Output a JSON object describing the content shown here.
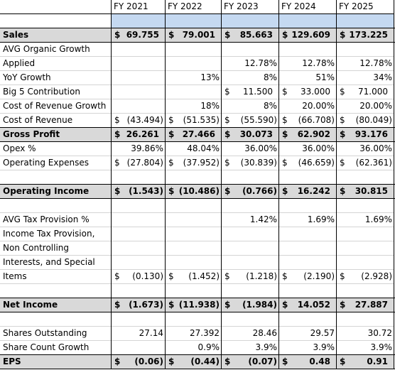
{
  "header": {
    "columns": [
      "FY 2021",
      "FY 2022",
      "FY 2023",
      "FY 2024",
      "FY 2025"
    ]
  },
  "rows": [
    {
      "label": null,
      "highlight": "#c5d9f1",
      "cells": [
        null,
        null,
        null,
        null,
        null
      ]
    },
    {
      "label": "Sales",
      "bold": true,
      "cells": [
        {
          "sign": "$",
          "amount": "69.755"
        },
        {
          "sign": "$",
          "amount": "79.001"
        },
        {
          "sign": "$",
          "amount": "85.663"
        },
        {
          "sign": "$",
          "amount": "129.609"
        },
        {
          "sign": "$",
          "amount": "173.225"
        }
      ]
    },
    {
      "label": "AVG Organic Growth",
      "cells": [
        null,
        null,
        null,
        null,
        null
      ]
    },
    {
      "label": "Applied",
      "cells": [
        null,
        null,
        "12.78%",
        "12.78%",
        "12.78%"
      ]
    },
    {
      "label": "YoY Growth",
      "cells": [
        null,
        "13%",
        "8%",
        "51%",
        "34%"
      ]
    },
    {
      "label": "Big 5 Contribution",
      "cells": [
        null,
        null,
        {
          "sign": "$",
          "amount": "11.500"
        },
        {
          "sign": "$",
          "amount": "33.000"
        },
        {
          "sign": "$",
          "amount": "71.000"
        }
      ]
    },
    {
      "label": "Cost of Revenue Growth",
      "cells": [
        null,
        "18%",
        "8%",
        "20.00%",
        "20.00%"
      ]
    },
    {
      "label": "Cost of Revenue",
      "cells": [
        {
          "sign": "$",
          "amount": "(43.494)"
        },
        {
          "sign": "$",
          "amount": "(51.535)"
        },
        {
          "sign": "$",
          "amount": "(55.590)"
        },
        {
          "sign": "$",
          "amount": "(66.708)"
        },
        {
          "sign": "$",
          "amount": "(80.049)"
        }
      ]
    },
    {
      "label": "Gross Profit",
      "bold": true,
      "cells": [
        {
          "sign": "$",
          "amount": "26.261"
        },
        {
          "sign": "$",
          "amount": "27.466"
        },
        {
          "sign": "$",
          "amount": "30.073"
        },
        {
          "sign": "$",
          "amount": "62.902"
        },
        {
          "sign": "$",
          "amount": "93.176"
        }
      ]
    },
    {
      "label": "Opex %",
      "cells": [
        "39.86%",
        "48.04%",
        "36.00%",
        "36.00%",
        "36.00%"
      ]
    },
    {
      "label": "Operating Expenses",
      "cells": [
        {
          "sign": "$",
          "amount": "(27.804)"
        },
        {
          "sign": "$",
          "amount": "(37.952)"
        },
        {
          "sign": "$",
          "amount": "(30.839)"
        },
        {
          "sign": "$",
          "amount": "(46.659)"
        },
        {
          "sign": "$",
          "amount": "(62.361)"
        }
      ]
    },
    {
      "label": null,
      "cells": [
        null,
        null,
        null,
        null,
        null
      ]
    },
    {
      "label": "Operating Income",
      "bold": true,
      "cells": [
        {
          "sign": "$",
          "amount": "(1.543)"
        },
        {
          "sign": "$",
          "amount": "(10.486)"
        },
        {
          "sign": "$",
          "amount": "(0.766)"
        },
        {
          "sign": "$",
          "amount": "16.242"
        },
        {
          "sign": "$",
          "amount": "30.815"
        }
      ]
    },
    {
      "label": null,
      "cells": [
        null,
        null,
        null,
        null,
        null
      ]
    },
    {
      "label": "AVG Tax Provision %",
      "cells": [
        null,
        null,
        "1.42%",
        "1.69%",
        "1.69%"
      ]
    },
    {
      "label": "Income Tax Provision,",
      "cells": [
        null,
        null,
        null,
        null,
        null
      ]
    },
    {
      "label": "Non Controlling",
      "cells": [
        null,
        null,
        null,
        null,
        null
      ]
    },
    {
      "label": "Interests, and Special",
      "cells": [
        null,
        null,
        null,
        null,
        null
      ]
    },
    {
      "label": "Items",
      "cells": [
        {
          "sign": "$",
          "amount": "(0.130)"
        },
        {
          "sign": "$",
          "amount": "(1.452)"
        },
        {
          "sign": "$",
          "amount": "(1.218)"
        },
        {
          "sign": "$",
          "amount": "(2.190)"
        },
        {
          "sign": "$",
          "amount": "(2.928)"
        }
      ]
    },
    {
      "label": null,
      "cells": [
        null,
        null,
        null,
        null,
        null
      ]
    },
    {
      "label": "Net Income",
      "bold": true,
      "cells": [
        {
          "sign": "$",
          "amount": "(1.673)"
        },
        {
          "sign": "$",
          "amount": "(11.938)"
        },
        {
          "sign": "$",
          "amount": "(1.984)"
        },
        {
          "sign": "$",
          "amount": "14.052"
        },
        {
          "sign": "$",
          "amount": "27.887"
        }
      ]
    },
    {
      "label": null,
      "cells": [
        null,
        null,
        null,
        null,
        null
      ]
    },
    {
      "label": "Shares Outstanding",
      "cells": [
        "27.14",
        "27.392",
        "28.46",
        "29.57",
        "30.72"
      ]
    },
    {
      "label": "Share Count Growth",
      "cells": [
        null,
        "0.9%",
        "3.9%",
        "3.9%",
        "3.9%"
      ]
    },
    {
      "label": "EPS",
      "bold": true,
      "cells": [
        {
          "sign": "$",
          "amount": "(0.06)"
        },
        {
          "sign": "$",
          "amount": "(0.44)"
        },
        {
          "sign": "$",
          "amount": "(0.07)"
        },
        {
          "sign": "$",
          "amount": "0.48"
        },
        {
          "sign": "$",
          "amount": "0.91"
        }
      ]
    }
  ]
}
